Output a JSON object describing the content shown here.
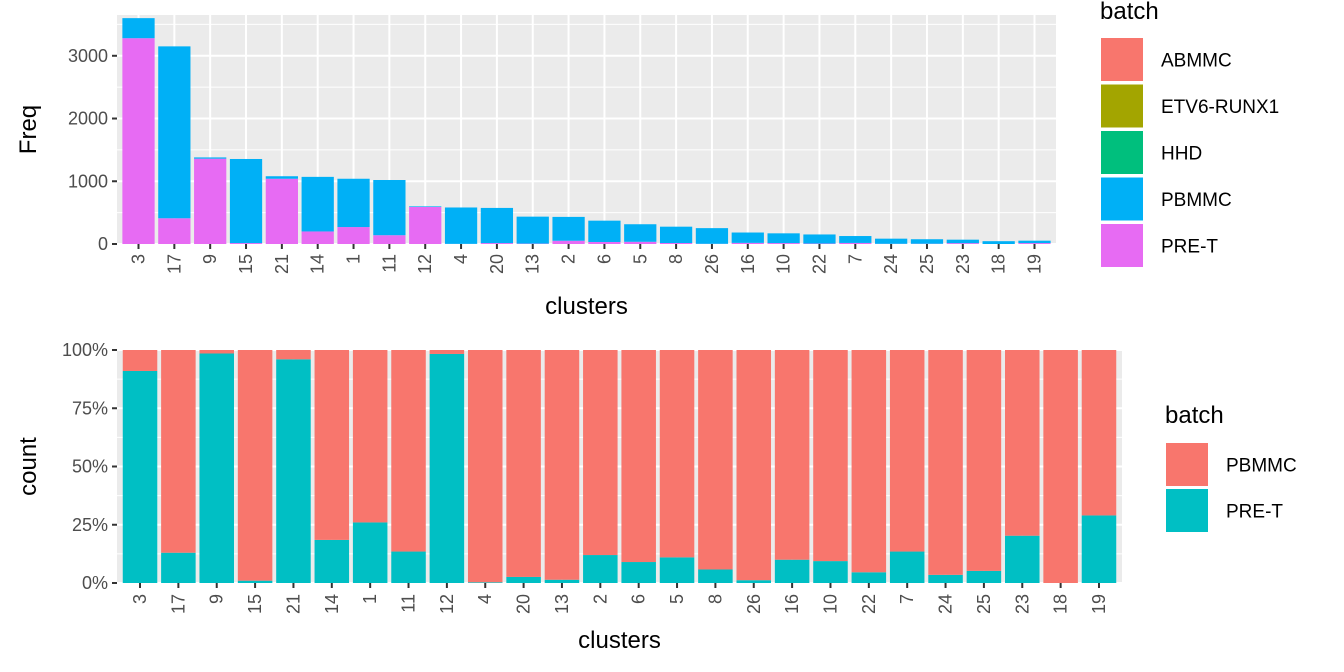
{
  "chart_data": [
    {
      "type": "bar",
      "stacked": true,
      "xlabel": "clusters",
      "ylabel": "Freq",
      "ylim": [
        0,
        3650
      ],
      "yticks": [
        0,
        1000,
        2000,
        3000
      ],
      "grid": true,
      "legend": {
        "title": "batch",
        "placement": "right"
      },
      "categories": [
        "3",
        "17",
        "9",
        "15",
        "21",
        "14",
        "1",
        "11",
        "12",
        "4",
        "20",
        "13",
        "2",
        "6",
        "5",
        "8",
        "26",
        "16",
        "10",
        "22",
        "7",
        "24",
        "25",
        "23",
        "18",
        "19"
      ],
      "series": [
        {
          "name": "ABMMC",
          "color": "#F8766D",
          "values": [
            0,
            0,
            0,
            0,
            0,
            0,
            0,
            0,
            0,
            0,
            0,
            0,
            0,
            0,
            0,
            0,
            0,
            0,
            0,
            0,
            0,
            0,
            0,
            0,
            0,
            0
          ]
        },
        {
          "name": "ETV6-RUNX1",
          "color": "#A3A500",
          "values": [
            0,
            0,
            0,
            0,
            0,
            0,
            0,
            0,
            0,
            0,
            0,
            0,
            0,
            0,
            0,
            0,
            0,
            0,
            0,
            0,
            0,
            0,
            0,
            0,
            0,
            0
          ]
        },
        {
          "name": "HHD",
          "color": "#00BF7D",
          "values": [
            0,
            0,
            0,
            0,
            0,
            0,
            0,
            0,
            0,
            0,
            0,
            0,
            0,
            0,
            0,
            0,
            0,
            0,
            0,
            0,
            0,
            0,
            0,
            0,
            0,
            0
          ]
        },
        {
          "name": "PBMMC",
          "color": "#00B0F6",
          "values": [
            320,
            2740,
            20,
            1340,
            40,
            870,
            770,
            880,
            10,
            580,
            560,
            430,
            380,
            340,
            280,
            260,
            250,
            165,
            155,
            145,
            110,
            82,
            72,
            55,
            45,
            38
          ]
        },
        {
          "name": "PRE-T",
          "color": "#E76BF3",
          "values": [
            3280,
            410,
            1360,
            15,
            1040,
            200,
            270,
            140,
            590,
            2,
            15,
            6,
            52,
            32,
            35,
            16,
            3,
            18,
            15,
            7,
            17,
            3,
            4,
            14,
            0,
            15
          ]
        }
      ]
    },
    {
      "type": "bar",
      "stacked": true,
      "percent": true,
      "xlabel": "clusters",
      "ylabel": "count",
      "ylim": [
        0,
        1
      ],
      "yticks": [
        "0%",
        "25%",
        "50%",
        "75%",
        "100%"
      ],
      "grid": true,
      "legend": {
        "title": "batch",
        "placement": "right"
      },
      "categories": [
        "3",
        "17",
        "9",
        "15",
        "21",
        "14",
        "1",
        "11",
        "12",
        "4",
        "20",
        "13",
        "2",
        "6",
        "5",
        "8",
        "26",
        "16",
        "10",
        "22",
        "7",
        "24",
        "25",
        "23",
        "18",
        "19"
      ],
      "series": [
        {
          "name": "PBMMC",
          "color": "#F8766D",
          "values": [
            0.09,
            0.87,
            0.015,
            0.99,
            0.04,
            0.815,
            0.74,
            0.865,
            0.017,
            0.997,
            0.974,
            0.986,
            0.88,
            0.91,
            0.89,
            0.942,
            0.988,
            0.9,
            0.906,
            0.954,
            0.865,
            0.965,
            0.948,
            0.797,
            1.0,
            0.71
          ]
        },
        {
          "name": "PRE-T",
          "color": "#00BFC4",
          "values": [
            0.91,
            0.13,
            0.985,
            0.01,
            0.96,
            0.185,
            0.26,
            0.135,
            0.983,
            0.003,
            0.026,
            0.014,
            0.12,
            0.09,
            0.11,
            0.058,
            0.012,
            0.1,
            0.094,
            0.046,
            0.135,
            0.035,
            0.052,
            0.203,
            0.0,
            0.29
          ]
        }
      ]
    }
  ]
}
